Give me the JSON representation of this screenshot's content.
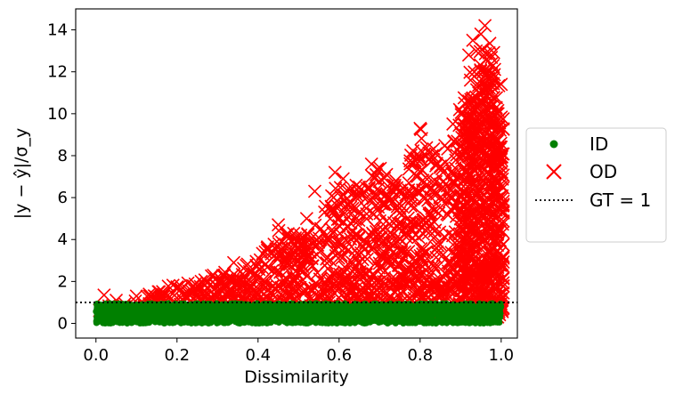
{
  "chart_data": {
    "type": "scatter",
    "xlabel": "Dissimilarity",
    "ylabel": "|y − ŷ|/σ_y",
    "xlim": [
      -0.05,
      1.04
    ],
    "ylim": [
      -0.7,
      15
    ],
    "xticks": [
      "0.0",
      "0.2",
      "0.4",
      "0.6",
      "0.8",
      "1.0"
    ],
    "xtick_values": [
      0.0,
      0.2,
      0.4,
      0.6,
      0.8,
      1.0
    ],
    "yticks": [
      "0",
      "2",
      "4",
      "6",
      "8",
      "10",
      "12",
      "14"
    ],
    "ytick_values": [
      0,
      2,
      4,
      6,
      8,
      10,
      12,
      14
    ],
    "grid": false,
    "legend_position": "outside-right",
    "reference_line": {
      "name": "GT = 1",
      "y": 1,
      "style": "dotted",
      "color": "#000000"
    },
    "series": [
      {
        "name": "ID",
        "marker": "circle",
        "color": "#008000",
        "description_range": {
          "x": [
            0.0,
            1.0
          ],
          "y": [
            0,
            1.0
          ]
        }
      },
      {
        "name": "OD",
        "marker": "x",
        "color": "#ff0000",
        "envelope": {
          "x": [
            0.01,
            0.05,
            0.1,
            0.2,
            0.3,
            0.4,
            0.45,
            0.5,
            0.55,
            0.6,
            0.65,
            0.7,
            0.75,
            0.8,
            0.85,
            0.9,
            0.93,
            0.95,
            0.97,
            1.0
          ],
          "y_max": [
            1.4,
            1.3,
            1.4,
            1.9,
            2.4,
            3.0,
            4.7,
            4.2,
            5.0,
            7.2,
            6.5,
            7.5,
            6.6,
            9.3,
            8.0,
            10.5,
            12.5,
            13.8,
            14.2,
            11.4
          ]
        },
        "highlighted_points": [
          {
            "x": 0.02,
            "y": 1.35
          },
          {
            "x": 0.05,
            "y": 1.1
          },
          {
            "x": 0.1,
            "y": 1.3
          },
          {
            "x": 0.2,
            "y": 1.7
          },
          {
            "x": 0.29,
            "y": 2.3
          },
          {
            "x": 0.34,
            "y": 2.9
          },
          {
            "x": 0.45,
            "y": 4.7
          },
          {
            "x": 0.52,
            "y": 5.0
          },
          {
            "x": 0.54,
            "y": 6.3
          },
          {
            "x": 0.59,
            "y": 7.2
          },
          {
            "x": 0.61,
            "y": 6.9
          },
          {
            "x": 0.65,
            "y": 6.5
          },
          {
            "x": 0.68,
            "y": 7.6
          },
          {
            "x": 0.74,
            "y": 6.8
          },
          {
            "x": 0.77,
            "y": 6.2
          },
          {
            "x": 0.8,
            "y": 9.3
          },
          {
            "x": 0.83,
            "y": 8.0
          },
          {
            "x": 0.85,
            "y": 7.5
          },
          {
            "x": 0.91,
            "y": 10.5
          },
          {
            "x": 0.92,
            "y": 12.8
          },
          {
            "x": 0.93,
            "y": 13.5
          },
          {
            "x": 0.95,
            "y": 13.8
          },
          {
            "x": 0.96,
            "y": 14.2
          },
          {
            "x": 0.97,
            "y": 12.9
          },
          {
            "x": 0.98,
            "y": 12.3
          },
          {
            "x": 1.0,
            "y": 11.4
          }
        ]
      }
    ]
  },
  "legend": {
    "items": [
      {
        "label": "ID",
        "color": "#008000",
        "marker": "circle"
      },
      {
        "label": "OD",
        "color": "#ff0000",
        "marker": "x"
      },
      {
        "label": "GT = 1",
        "color": "#000000",
        "marker": "dotted-line"
      }
    ]
  }
}
